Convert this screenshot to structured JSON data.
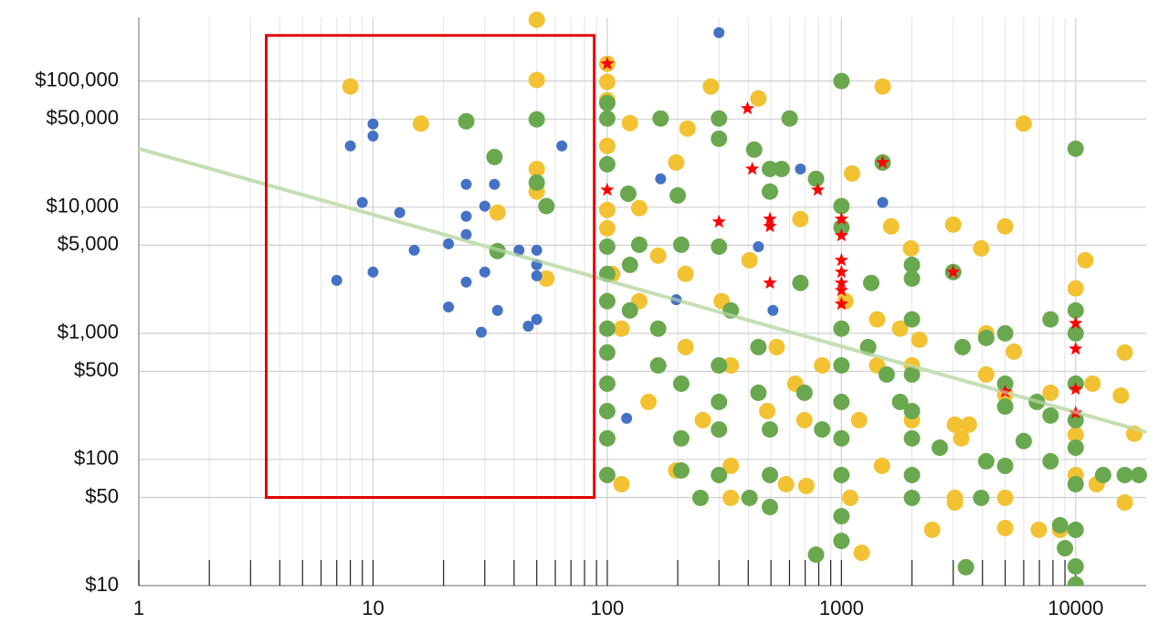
{
  "chart_data": {
    "type": "scatter",
    "xlog": true,
    "ylog": true,
    "grid": true,
    "xlim": [
      1,
      20000
    ],
    "ylim": [
      10,
      320000
    ],
    "xticks": [
      1,
      10,
      100,
      1000,
      10000
    ],
    "xminorticks": [
      2,
      3,
      4,
      5,
      6,
      7,
      8,
      9,
      20,
      30,
      40,
      50,
      60,
      70,
      80,
      90,
      200,
      300,
      400,
      500,
      600,
      700,
      800,
      900,
      2000,
      3000,
      4000,
      5000,
      6000,
      7000,
      8000,
      9000
    ],
    "yticks": [
      {
        "value": 10,
        "label": "$10"
      },
      {
        "value": 50,
        "label": "$50"
      },
      {
        "value": 100,
        "label": "$100"
      },
      {
        "value": 500,
        "label": "$500"
      },
      {
        "value": 1000,
        "label": "$1,000"
      },
      {
        "value": 5000,
        "label": "$5,000"
      },
      {
        "value": 10000,
        "label": "$10,000"
      },
      {
        "value": 50000,
        "label": "$50,000"
      },
      {
        "value": 100000,
        "label": "$100,000"
      }
    ],
    "trendline": {
      "x": [
        1,
        20000
      ],
      "values": [
        29100,
        165
      ],
      "color": "#c5dfb4"
    },
    "highlight_box": {
      "xlim": [
        3.5,
        88
      ],
      "ylim": [
        50,
        230000
      ],
      "color": "#e00000"
    },
    "series": [
      {
        "color": "#f2c232",
        "marker": "circle",
        "size": 9,
        "x": [
          8,
          16,
          50,
          50,
          34,
          55,
          50,
          50,
          100,
          100,
          100,
          125,
          100,
          100,
          100,
          137,
          197,
          220,
          277,
          442,
          405,
          668,
          1110,
          1500,
          1630,
          1980,
          3000,
          3950,
          5000,
          6000,
          11000,
          16200,
          15600,
          16200,
          8580,
          6960,
          5000,
          3050,
          2440,
          1220,
          708,
          580,
          337,
          197,
          150,
          256,
          482,
          695,
          1190,
          2000,
          3500,
          5000,
          7810,
          10000,
          10000,
          10000,
          10000,
          3050,
          2150,
          1780,
          1420,
          1040,
          529,
          308,
          216,
          137,
          105,
          165,
          115,
          216,
          337,
          635,
          827,
          1420,
          2000,
          4150,
          5450,
          4150,
          11800,
          17800,
          12300,
          3250,
          1490,
          1090,
          337,
          115,
          5000,
          3050
        ],
        "values": [
          90500,
          46000,
          102000,
          306000,
          9060,
          2720,
          20100,
          13300,
          137000,
          98500,
          70500,
          46400,
          30600,
          9510,
          6810,
          9840,
          22600,
          42000,
          90500,
          72800,
          3800,
          8050,
          18500,
          90500,
          7050,
          4720,
          7280,
          4720,
          7050,
          46000,
          3800,
          705,
          321,
          45.6,
          27.7,
          27.7,
          28.6,
          45.6,
          27.7,
          18.2,
          61.6,
          63.7,
          89,
          81.8,
          286,
          205,
          242,
          205,
          205,
          205,
          189,
          327,
          338,
          2270,
          399,
          157,
          75.3,
          189,
          890,
          1090,
          1290,
          1800,
          778,
          1800,
          2960,
          1800,
          2960,
          4130,
          1090,
          778,
          557,
          399,
          557,
          557,
          557,
          1000,
          716,
          472,
          399,
          160,
          63.7,
          147,
          89,
          49.6,
          49.6,
          63.7,
          49.6,
          49.6
        ]
      },
      {
        "color": "#6aa84f",
        "marker": "circle",
        "size": 9,
        "x": [
          25,
          50,
          33,
          34,
          55,
          50,
          100,
          100,
          100,
          123,
          169,
          200,
          300,
          300,
          424,
          601,
          495,
          555,
          495,
          779,
          1000,
          1000,
          1000,
          1500,
          10000,
          3000,
          2000,
          2000,
          1340,
          668,
          300,
          207,
          137,
          100,
          100,
          100,
          100,
          100,
          100,
          100,
          100,
          100,
          125,
          125,
          165,
          165,
          207,
          207,
          207,
          300,
          300,
          300,
          300,
          337,
          442,
          442,
          495,
          495,
          495,
          695,
          827,
          1000,
          1000,
          1000,
          1000,
          1000,
          1000,
          1000,
          779,
          1300,
          1560,
          1780,
          2000,
          2000,
          2000,
          2000,
          2000,
          2000,
          2630,
          3290,
          4150,
          4150,
          5000,
          5000,
          5000,
          5000,
          6000,
          6830,
          7810,
          7810,
          7810,
          8580,
          10000,
          10000,
          10000,
          10000,
          10000,
          10000,
          10000,
          10000,
          10000,
          13100,
          16200,
          18600,
          3950,
          3400,
          405,
          250,
          9000
        ],
        "values": [
          48000,
          49700,
          25000,
          4490,
          10200,
          15700,
          67000,
          50500,
          21900,
          12800,
          50500,
          12400,
          50500,
          34900,
          28600,
          50500,
          20100,
          20100,
          13300,
          16800,
          100000,
          10200,
          6930,
          22600,
          29100,
          3060,
          3490,
          2720,
          2510,
          2510,
          4870,
          5040,
          5040,
          4870,
          2960,
          1800,
          1090,
          705,
          399,
          242,
          147,
          75.3,
          3490,
          1520,
          1090,
          557,
          399,
          147,
          81.8,
          557,
          286,
          173,
          75.3,
          1520,
          778,
          338,
          173,
          75.3,
          42,
          338,
          173,
          1090,
          557,
          286,
          147,
          75.3,
          35.5,
          22.6,
          17.6,
          778,
          472,
          286,
          1290,
          472,
          242,
          147,
          75.3,
          49.6,
          124,
          778,
          920,
          96.8,
          1000,
          399,
          263,
          89,
          140,
          286,
          1290,
          223,
          96.8,
          30.1,
          1520,
          1000,
          399,
          205,
          124,
          63.7,
          27.7,
          14.2,
          10.2,
          75.3,
          75.3,
          75.3,
          49.6,
          14,
          49.6,
          49.6,
          19.8
        ]
      },
      {
        "color": "#4472c4",
        "marker": "circle",
        "size": 6,
        "x": [
          7,
          8,
          10,
          10,
          9,
          10,
          13,
          15,
          21,
          25,
          25,
          25,
          25,
          30,
          30,
          33,
          34,
          42,
          46,
          50,
          50,
          50,
          50,
          64,
          21,
          29,
          300,
          169,
          668,
          1500,
          121,
          197,
          442,
          510
        ],
        "values": [
          2630,
          30600,
          45700,
          36700,
          10900,
          3060,
          9060,
          4560,
          5130,
          15200,
          8470,
          6070,
          2550,
          10200,
          3060,
          15200,
          1520,
          4560,
          1140,
          4560,
          3490,
          2860,
          1290,
          30600,
          1620,
          1020,
          242000,
          16800,
          20100,
          10900,
          212,
          1850,
          4870,
          1520
        ]
      },
      {
        "color": "#ff0000",
        "marker": "star",
        "size": 8,
        "x": [
          100,
          100,
          397,
          416,
          300,
          793,
          495,
          495,
          495,
          1000,
          1000,
          1000,
          1000,
          1000,
          1000,
          1000,
          1500,
          3000,
          5000,
          10000,
          10000,
          10000,
          10000
        ],
        "values": [
          137000,
          13700,
          60600,
          20100,
          7660,
          13700,
          8050,
          7050,
          2510,
          8050,
          5960,
          3800,
          3060,
          2510,
          2190,
          1710,
          22600,
          3060,
          344,
          1200,
          753,
          361,
          234
        ]
      }
    ]
  }
}
